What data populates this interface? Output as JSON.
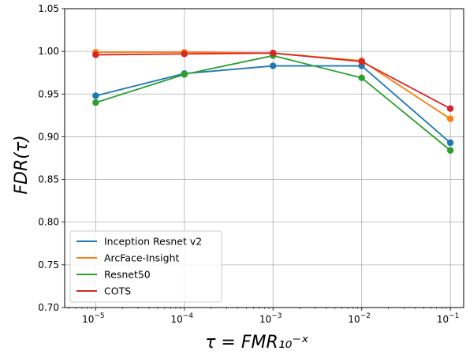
{
  "chart_data": {
    "type": "line",
    "title": "",
    "xlabel": "τ = FMR₁₀⁻ˣ",
    "ylabel": "FDR(τ)",
    "x_scale": "log",
    "x": [
      1e-05,
      0.0001,
      0.001,
      0.01,
      0.1
    ],
    "x_tick_labels": [
      {
        "base": "10",
        "exp": "−5"
      },
      {
        "base": "10",
        "exp": "−4"
      },
      {
        "base": "10",
        "exp": "−3"
      },
      {
        "base": "10",
        "exp": "−2"
      },
      {
        "base": "10",
        "exp": "−1"
      }
    ],
    "y_ticks": [
      "0.70",
      "0.75",
      "0.80",
      "0.85",
      "0.90",
      "0.95",
      "1.00",
      "1.05"
    ],
    "ylim": [
      0.7,
      1.05
    ],
    "grid": true,
    "legend_position": "lower-left",
    "series": [
      {
        "name": "Inception Resnet v2",
        "color": "#1f77b4",
        "values": [
          0.948,
          0.974,
          0.983,
          0.983,
          0.893
        ]
      },
      {
        "name": "ArcFace-Insight",
        "color": "#ff7f0e",
        "values": [
          0.999,
          0.999,
          0.998,
          0.989,
          0.921
        ]
      },
      {
        "name": "Resnet50",
        "color": "#2ca02c",
        "values": [
          0.94,
          0.973,
          0.995,
          0.969,
          0.884
        ]
      },
      {
        "name": "COTS",
        "color": "#d62728",
        "values": [
          0.996,
          0.997,
          0.998,
          0.988,
          0.933
        ]
      }
    ]
  }
}
